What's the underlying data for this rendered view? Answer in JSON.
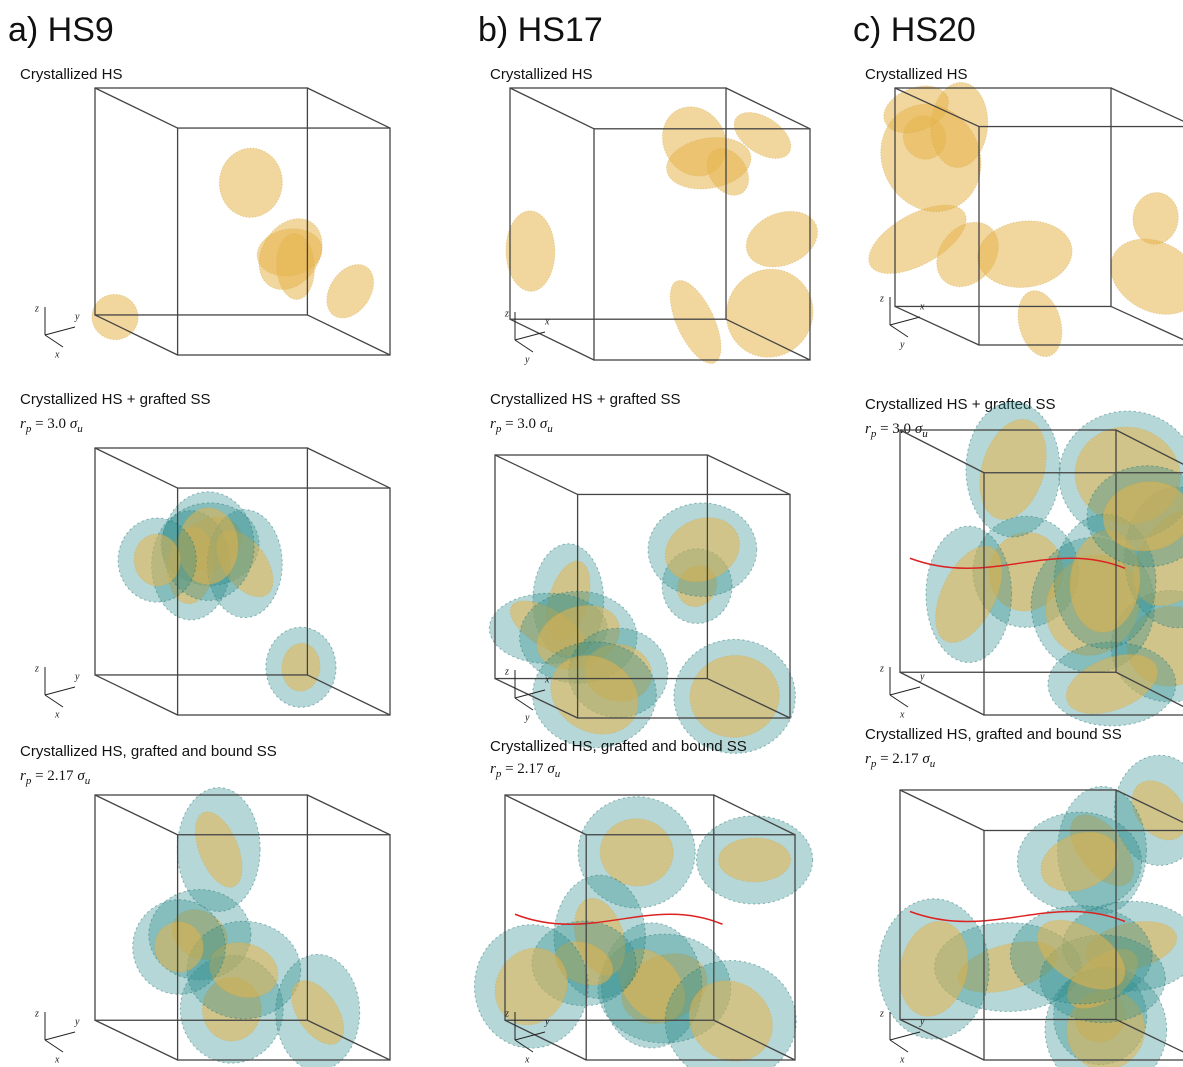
{
  "columns": [
    {
      "title": "a) HS9",
      "panels": [
        {
          "label": "Crystallized HS",
          "axes": [
            "z",
            "y",
            "x"
          ]
        },
        {
          "label": "Crystallized HS + grafted SS",
          "radius": {
            "r": "r",
            "r_sub": "p",
            "value": " = 3.0 ",
            "s": "σ",
            "s_sub": "u"
          },
          "axes": [
            "z",
            "y",
            "x"
          ]
        },
        {
          "label": "Crystallized HS, grafted and bound SS",
          "radius": {
            "r": "r",
            "r_sub": "p",
            "value": " = 2.17 ",
            "s": "σ",
            "s_sub": "u"
          },
          "axes": [
            "z",
            "y",
            "x"
          ]
        }
      ]
    },
    {
      "title": "b) HS17",
      "panels": [
        {
          "label": "Crystallized HS",
          "axes": [
            "z",
            "x",
            "y"
          ]
        },
        {
          "label": "Crystallized HS + grafted SS",
          "radius": {
            "r": "r",
            "r_sub": "p",
            "value": " = 3.0 ",
            "s": "σ",
            "s_sub": "u"
          },
          "axes": [
            "z",
            "x",
            "y"
          ]
        },
        {
          "label": "Crystallized HS, grafted and bound SS",
          "radius": {
            "r": "r",
            "r_sub": "p",
            "value": " = 2.17 ",
            "s": "σ",
            "s_sub": "u"
          },
          "axes": [
            "z",
            "y",
            "x"
          ]
        }
      ]
    },
    {
      "title": "c) HS20",
      "panels": [
        {
          "label": "Crystallized HS",
          "axes": [
            "z",
            "x",
            "y"
          ]
        },
        {
          "label": "Crystallized HS + grafted SS",
          "radius": {
            "r": "r",
            "r_sub": "p",
            "value": " = 3.0 ",
            "s": "σ",
            "s_sub": "u"
          },
          "axes": [
            "z",
            "y",
            "x"
          ]
        },
        {
          "label": "Crystallized HS, grafted and bound SS",
          "radius": {
            "r": "r",
            "r_sub": "p",
            "value": " = 2.17 ",
            "s": "σ",
            "s_sub": "u"
          },
          "axes": [
            "z",
            "y",
            "x"
          ]
        }
      ]
    }
  ]
}
